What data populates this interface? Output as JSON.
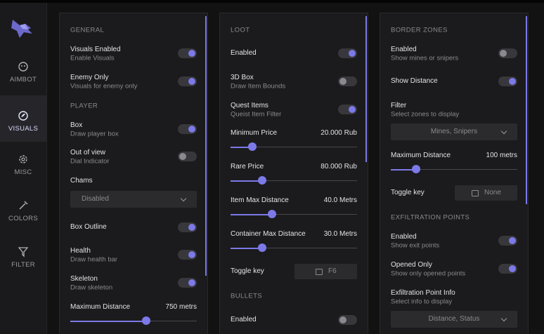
{
  "sidebar": {
    "items": [
      "AIMBOT",
      "VISUALS",
      "MISC",
      "COLORS",
      "FILTER"
    ],
    "active": 1
  },
  "panels": [
    {
      "sections": [
        {
          "title": "GENERAL",
          "items": [
            {
              "kind": "toggle",
              "label": "Visuals Enabled",
              "hint": "Enable Visuals",
              "on": true
            },
            {
              "kind": "toggle",
              "label": "Enemy Only",
              "hint": "Visuals for enemy only",
              "on": true
            }
          ]
        },
        {
          "title": "PLAYER",
          "items": [
            {
              "kind": "toggle",
              "label": "Box",
              "hint": "Draw player box",
              "on": true
            },
            {
              "kind": "toggle",
              "label": "Out of view",
              "hint": "Dial Indicator",
              "on": false
            },
            {
              "kind": "select",
              "label": "Chams",
              "value": "Disabled"
            },
            {
              "kind": "toggle",
              "label": "Box Outline",
              "on": true
            },
            {
              "kind": "toggle",
              "label": "Health",
              "hint": "Draw health bar",
              "on": true
            },
            {
              "kind": "toggle",
              "label": "Skeleton",
              "hint": "Draw skeleton",
              "on": true
            },
            {
              "kind": "slider",
              "label": "Maximum Distance",
              "value": "750 metrs"
            }
          ]
        }
      ]
    },
    {
      "sections": [
        {
          "title": "LOOT",
          "items": [
            {
              "kind": "toggle",
              "label": "Enabled",
              "on": true
            },
            {
              "kind": "toggle",
              "label": "3D Box",
              "hint": "Draw Item Bounds",
              "on": false
            },
            {
              "kind": "toggle",
              "label": "Quest Items",
              "hint": "Queist Item Filter",
              "on": true
            },
            {
              "kind": "slider",
              "label": "Minimum Price",
              "value": "20.000 Rub"
            },
            {
              "kind": "slider",
              "label": "Rare Price",
              "value": "80.000 Rub"
            },
            {
              "kind": "slider",
              "label": "Item Max Distance",
              "value": "40.0 Metrs"
            },
            {
              "kind": "slider",
              "label": "Container Max Distance",
              "value": "30.0 Metrs"
            },
            {
              "kind": "key",
              "label": "Toggle key",
              "value": "F6"
            }
          ]
        },
        {
          "title": "BULLETS",
          "items": [
            {
              "kind": "toggle",
              "label": "Enabled",
              "on": false
            }
          ]
        }
      ]
    },
    {
      "sections": [
        {
          "title": "BORDER ZONES",
          "items": [
            {
              "kind": "toggle",
              "label": "Enabled",
              "hint": "Show mines or snipers",
              "on": false
            },
            {
              "kind": "toggle",
              "label": "Show Distance",
              "on": true
            },
            {
              "kind": "select",
              "label": "Filter",
              "hint": "Select zones to display",
              "value": "Mines, Snipers"
            },
            {
              "kind": "slider",
              "label": "Maximum Distance",
              "value": "100 metrs"
            },
            {
              "kind": "key",
              "label": "Toggle key",
              "value": "None"
            }
          ]
        },
        {
          "title": "EXFILTRATION POINTS",
          "items": [
            {
              "kind": "toggle",
              "label": "Enabled",
              "hint": "Show exit points",
              "on": true
            },
            {
              "kind": "toggle",
              "label": "Opened Only",
              "hint": "Show only opened points",
              "on": true
            },
            {
              "kind": "select",
              "label": "Exfiltration Point Info",
              "hint": "Select info to display",
              "value": "Distance, Status"
            }
          ]
        }
      ]
    }
  ]
}
